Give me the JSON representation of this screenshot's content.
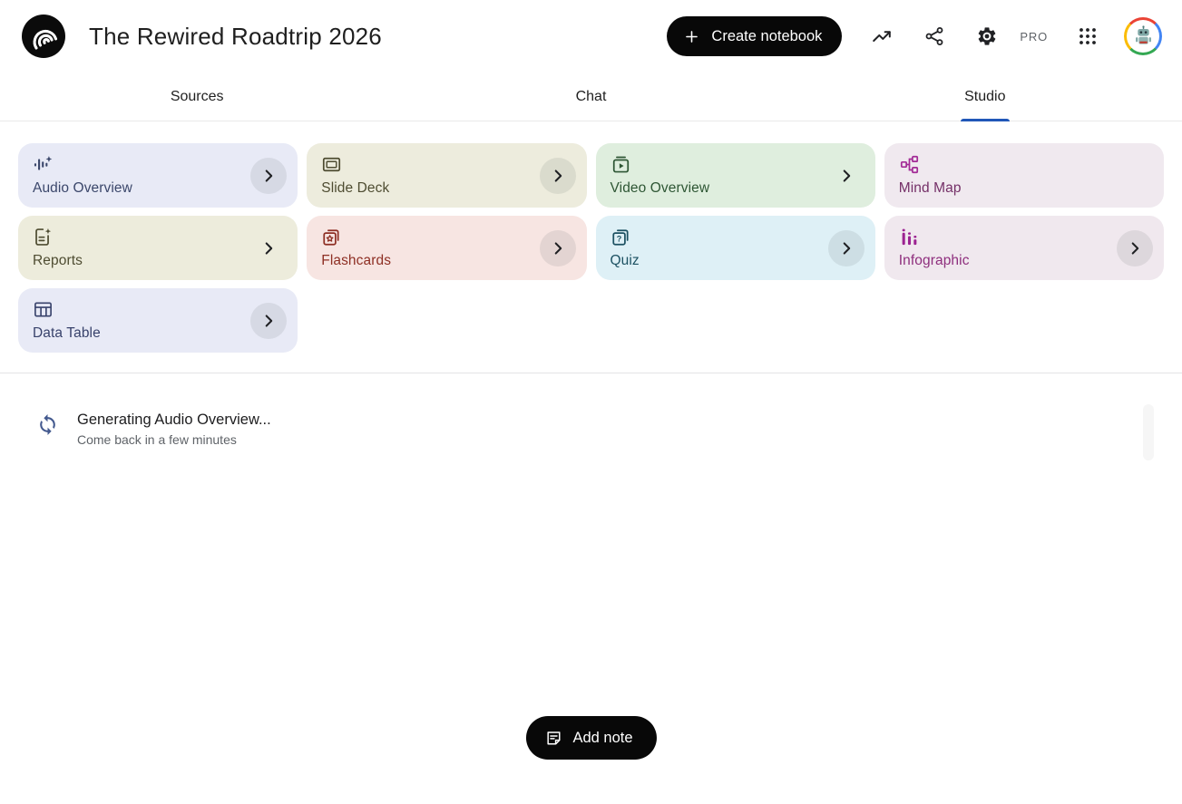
{
  "header": {
    "title": "The Rewired Roadtrip 2026",
    "create_notebook": {
      "label": "Create notebook",
      "icon": "plus-icon"
    },
    "pro_label": "PRO",
    "icons": {
      "logo": "notebooklm-logo",
      "analytics": "trending-up-icon",
      "share": "share-icon",
      "settings": "gear-icon",
      "apps": "apps-grid-icon",
      "avatar": "user-avatar-robot"
    }
  },
  "tabs": [
    {
      "id": "sources",
      "label": "Sources",
      "active": false
    },
    {
      "id": "chat",
      "label": "Chat",
      "active": false
    },
    {
      "id": "studio",
      "label": "Studio",
      "active": true
    }
  ],
  "studio": {
    "cards": [
      {
        "id": "audio-overview",
        "label": "Audio Overview",
        "icon": "audio-waveform-sparkle-icon",
        "bg": "#e8eaf6",
        "fg": "#3b476b",
        "chevron": "circle"
      },
      {
        "id": "slide-deck",
        "label": "Slide Deck",
        "icon": "slide-frame-icon",
        "bg": "#edecdd",
        "fg": "#4e4c31",
        "chevron": "circle"
      },
      {
        "id": "video-overview",
        "label": "Video Overview",
        "icon": "video-play-icon",
        "bg": "#dfeede",
        "fg": "#2e5634",
        "chevron": "plain"
      },
      {
        "id": "mind-map",
        "label": "Mind Map",
        "icon": "mind-map-icon",
        "bg": "#f0e9ef",
        "fg": "#742f67",
        "icon_fg": "#a32c96",
        "chevron": "none"
      },
      {
        "id": "reports",
        "label": "Reports",
        "icon": "report-sparkle-icon",
        "bg": "#edecdc",
        "fg": "#4e4c31",
        "chevron": "plain"
      },
      {
        "id": "flashcards",
        "label": "Flashcards",
        "icon": "flashcards-star-icon",
        "bg": "#f7e5e2",
        "fg": "#8e2f24",
        "chevron": "circle"
      },
      {
        "id": "quiz",
        "label": "Quiz",
        "icon": "quiz-cards-icon",
        "bg": "#def0f6",
        "fg": "#1c5162",
        "chevron": "circle"
      },
      {
        "id": "infographic",
        "label": "Infographic",
        "icon": "bar-chart-icon",
        "bg": "#f0e8ee",
        "fg": "#8e2e7d",
        "icon_fg": "#9c2391",
        "chevron": "circle"
      },
      {
        "id": "data-table",
        "label": "Data Table",
        "icon": "data-table-icon",
        "bg": "#e8eaf6",
        "fg": "#38426b",
        "chevron": "circle"
      }
    ],
    "chevron_icon": "chevron-right-icon",
    "status": {
      "icon": "sync-icon",
      "title": "Generating Audio Overview...",
      "subtitle": "Come back in a few minutes"
    },
    "add_note": {
      "label": "Add note",
      "icon": "note-icon"
    }
  },
  "colors": {
    "active_tab_underline": "#2057b8",
    "header_button_bg": "#080808",
    "status_spinner": "#445a8f"
  }
}
